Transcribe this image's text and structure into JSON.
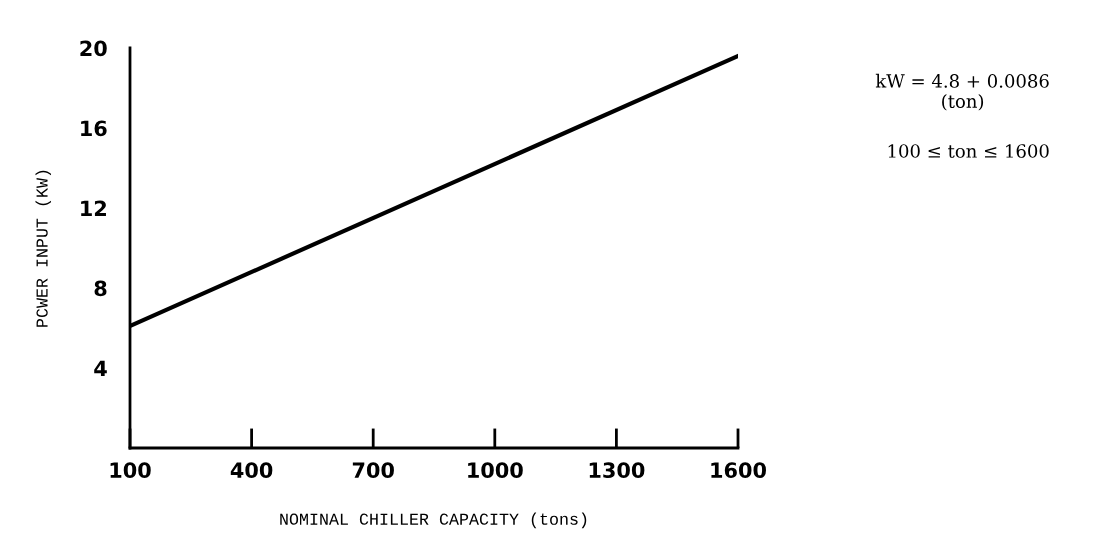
{
  "chart_data": {
    "type": "line",
    "xlabel": "NOMINAL CHILLER CAPACITY (tons)",
    "ylabel": "PCWER INPUT (KW)",
    "x": [
      100,
      1600
    ],
    "series": [
      {
        "color": "#000000",
        "values": [
          6.1,
          19.6
        ]
      }
    ],
    "xlim": [
      100,
      1600
    ],
    "ylim": [
      0,
      20
    ],
    "xticks": [
      100,
      400,
      700,
      1000,
      1300,
      1600
    ],
    "yticks": [
      4,
      8,
      12,
      16,
      20
    ],
    "annotations": [
      "kW = 4.8 + 0.0086\n(ton)",
      "100 ≤ ton ≤ 1600"
    ],
    "grid": false,
    "legend": false,
    "marker": "none",
    "line_style": "solid"
  }
}
